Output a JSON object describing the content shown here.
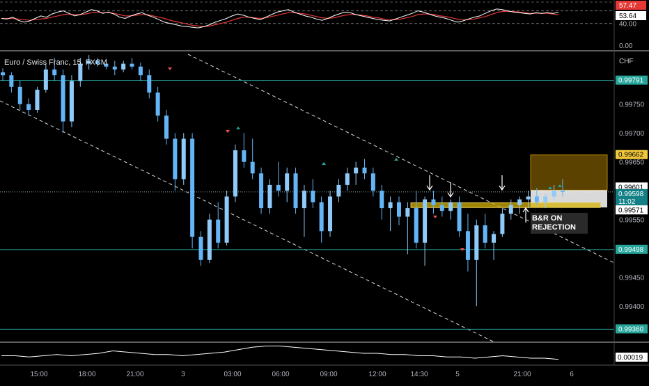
{
  "header": {
    "symbol_title": "Euro / Swiss Franc, 15, FXCM",
    "currency": "CHF"
  },
  "annotation": {
    "line1": "B&R ON",
    "line2": "REJECTION"
  },
  "colors": {
    "up": "#90caf9",
    "down": "#64b5f6",
    "level_line": "#26a69a",
    "zone_orange": "#6b4e00",
    "zone_yellow": "#d4b106",
    "rsi_fast": "#ffffff",
    "rsi_slow": "#e53935",
    "background": "#000000"
  },
  "chart_data": [
    {
      "type": "line",
      "name": "rsi-panel",
      "ylim": [
        0,
        75
      ],
      "tick_labels": [
        "57.47",
        "53.64",
        "40.00",
        "0.00"
      ],
      "last_values": {
        "fast": 57.47,
        "slow": 53.64
      },
      "levels": [
        40,
        60
      ],
      "fast": [
        48,
        47,
        50,
        45,
        42,
        44,
        48,
        52,
        50,
        55,
        58,
        60,
        56,
        52,
        54,
        58,
        62,
        60,
        56,
        58,
        55,
        50,
        48,
        52,
        55,
        57,
        53,
        50,
        46,
        42,
        40,
        38,
        36,
        35,
        34,
        33,
        35,
        38,
        42,
        45,
        48,
        52,
        55,
        53,
        50,
        48,
        46,
        50,
        54,
        58,
        60,
        62,
        58,
        55,
        52,
        50,
        47,
        45,
        48,
        52,
        55,
        58,
        57,
        54,
        52,
        50,
        48,
        46,
        45,
        44,
        47,
        50,
        53,
        56,
        60,
        58,
        55,
        52,
        50,
        48,
        45,
        42,
        44,
        47,
        50,
        52,
        56,
        60,
        63,
        62,
        60,
        58,
        57,
        56,
        55,
        57,
        56,
        57,
        56,
        57.47
      ],
      "slow": [
        48,
        48,
        48,
        47,
        46,
        45,
        46,
        47,
        48,
        50,
        52,
        54,
        55,
        54,
        54,
        55,
        57,
        58,
        57,
        57,
        56,
        54,
        52,
        52,
        53,
        54,
        54,
        52,
        50,
        48,
        45,
        43,
        41,
        39,
        37,
        36,
        35,
        36,
        38,
        40,
        42,
        45,
        48,
        50,
        50,
        49,
        48,
        49,
        51,
        53,
        55,
        57,
        57,
        56,
        55,
        53,
        51,
        49,
        48,
        49,
        51,
        53,
        54,
        54,
        53,
        52,
        50,
        49,
        47,
        46,
        46,
        47,
        49,
        51,
        54,
        55,
        55,
        54,
        52,
        51,
        49,
        47,
        46,
        46,
        47,
        49,
        51,
        54,
        57,
        59,
        59,
        59,
        58,
        57,
        56,
        56,
        56,
        56,
        55,
        53.64
      ]
    },
    {
      "type": "candlestick",
      "name": "price-panel",
      "ylim": [
        0.9934,
        0.9984
      ],
      "x_ticks": [
        "15:00",
        "18:00",
        "21:00",
        "3",
        "03:00",
        "06:00",
        "09:00",
        "12:00",
        "14:30",
        "5",
        "21:00",
        "6"
      ],
      "y_ticks": [
        "0.99750",
        "0.99700",
        "0.99650",
        "0.99550",
        "0.99450",
        "0.99400"
      ],
      "price_labels": [
        {
          "text": "0.99791",
          "value": 0.99791
        },
        {
          "text": "0.99662",
          "value": 0.99662
        },
        {
          "text": "0.99601",
          "value": 0.99601
        },
        {
          "text": "0.99598",
          "value": 0.99598
        },
        {
          "text": "11:02",
          "value": 0.99588
        },
        {
          "text": "0.99571",
          "value": 0.99571
        },
        {
          "text": "0.99498",
          "value": 0.99498
        },
        {
          "text": "0.99360",
          "value": 0.9936
        }
      ],
      "horizontal_levels": [
        0.99791,
        0.99498,
        0.9936
      ],
      "last_price": 0.99598,
      "zones": [
        {
          "kind": "orange",
          "from": 0.99601,
          "to": 0.99662
        },
        {
          "kind": "white",
          "from": 0.99571,
          "to": 0.99601
        },
        {
          "kind": "yellow",
          "from": 0.99571,
          "to": 0.99579
        }
      ],
      "candles": [
        [
          0.99805,
          0.99812,
          0.9979,
          0.998
        ],
        [
          0.998,
          0.99805,
          0.9977,
          0.9978
        ],
        [
          0.9978,
          0.9979,
          0.9974,
          0.9975
        ],
        [
          0.9975,
          0.9976,
          0.9973,
          0.9974
        ],
        [
          0.9974,
          0.9978,
          0.99735,
          0.99775
        ],
        [
          0.99775,
          0.9982,
          0.9977,
          0.9981
        ],
        [
          0.9981,
          0.9983,
          0.9979,
          0.998
        ],
        [
          0.998,
          0.9981,
          0.997,
          0.9972
        ],
        [
          0.9972,
          0.998,
          0.9971,
          0.9979
        ],
        [
          0.9979,
          0.9983,
          0.9978,
          0.9982
        ],
        [
          0.9982,
          0.99835,
          0.9981,
          0.99825
        ],
        [
          0.99825,
          0.9983,
          0.99815,
          0.9982
        ],
        [
          0.9982,
          0.99828,
          0.9981,
          0.99815
        ],
        [
          0.99815,
          0.99825,
          0.998,
          0.9981
        ],
        [
          0.9981,
          0.99825,
          0.99805,
          0.9982
        ],
        [
          0.9982,
          0.9983,
          0.9981,
          0.99815
        ],
        [
          0.99815,
          0.99822,
          0.9979,
          0.998
        ],
        [
          0.998,
          0.9981,
          0.9976,
          0.9977
        ],
        [
          0.9977,
          0.9978,
          0.9972,
          0.9973
        ],
        [
          0.9973,
          0.9974,
          0.9968,
          0.9969
        ],
        [
          0.9969,
          0.997,
          0.996,
          0.9962
        ],
        [
          0.9962,
          0.997,
          0.9961,
          0.9969
        ],
        [
          0.9969,
          0.997,
          0.995,
          0.9952
        ],
        [
          0.9952,
          0.9953,
          0.9947,
          0.9948
        ],
        [
          0.9948,
          0.9956,
          0.99475,
          0.9955
        ],
        [
          0.9955,
          0.9958,
          0.995,
          0.9951
        ],
        [
          0.9951,
          0.996,
          0.99505,
          0.9959
        ],
        [
          0.9959,
          0.9968,
          0.9958,
          0.9967
        ],
        [
          0.9967,
          0.997,
          0.9964,
          0.9965
        ],
        [
          0.9965,
          0.9969,
          0.9962,
          0.9963
        ],
        [
          0.9963,
          0.9964,
          0.9956,
          0.9957
        ],
        [
          0.9957,
          0.9962,
          0.9956,
          0.9961
        ],
        [
          0.9961,
          0.9965,
          0.9959,
          0.996
        ],
        [
          0.996,
          0.9964,
          0.9958,
          0.9963
        ],
        [
          0.9963,
          0.9964,
          0.9956,
          0.9957
        ],
        [
          0.9957,
          0.9961,
          0.9952,
          0.996
        ],
        [
          0.996,
          0.9962,
          0.9957,
          0.9958
        ],
        [
          0.9958,
          0.9959,
          0.9951,
          0.9953
        ],
        [
          0.9953,
          0.996,
          0.9952,
          0.9959
        ],
        [
          0.9959,
          0.9962,
          0.9958,
          0.9961
        ],
        [
          0.9961,
          0.9964,
          0.996,
          0.9963
        ],
        [
          0.9963,
          0.9965,
          0.9961,
          0.9964
        ],
        [
          0.9964,
          0.99655,
          0.9962,
          0.9963
        ],
        [
          0.9963,
          0.9964,
          0.9959,
          0.996
        ],
        [
          0.996,
          0.9961,
          0.9955,
          0.9957
        ],
        [
          0.9957,
          0.9959,
          0.9953,
          0.9958
        ],
        [
          0.9958,
          0.9959,
          0.9954,
          0.99555
        ],
        [
          0.99555,
          0.9958,
          0.9949,
          0.9957
        ],
        [
          0.9957,
          0.996,
          0.995,
          0.9951
        ],
        [
          0.9951,
          0.9959,
          0.9947,
          0.99585
        ],
        [
          0.99585,
          0.996,
          0.9956,
          0.99575
        ],
        [
          0.99575,
          0.9959,
          0.99555,
          0.99565
        ],
        [
          0.99565,
          0.99585,
          0.9955,
          0.9958
        ],
        [
          0.9958,
          0.9959,
          0.9952,
          0.9953
        ],
        [
          0.9953,
          0.9956,
          0.9946,
          0.9948
        ],
        [
          0.9948,
          0.9955,
          0.994,
          0.9954
        ],
        [
          0.9954,
          0.9956,
          0.995,
          0.9951
        ],
        [
          0.9951,
          0.9953,
          0.9948,
          0.99525
        ],
        [
          0.99525,
          0.9957,
          0.9952,
          0.9956
        ],
        [
          0.9956,
          0.99585,
          0.9955,
          0.99575
        ],
        [
          0.99575,
          0.9959,
          0.9956,
          0.99585
        ],
        [
          0.99585,
          0.996,
          0.9957,
          0.9959
        ],
        [
          0.9959,
          0.99605,
          0.99575,
          0.9958
        ],
        [
          0.9958,
          0.99595,
          0.9957,
          0.9959
        ],
        [
          0.9959,
          0.9961,
          0.99585,
          0.996
        ],
        [
          0.996,
          0.9962,
          0.9959,
          0.99598
        ]
      ]
    },
    {
      "type": "area",
      "name": "volatility-panel",
      "last_value_label": "0.00019",
      "values": [
        0.00022,
        0.00022,
        0.00021,
        0.00022,
        0.00023,
        0.00022,
        0.00023,
        0.00024,
        0.00026,
        0.00025,
        0.00024,
        0.00023,
        0.00023,
        0.00022,
        0.00023,
        0.00024,
        0.00025,
        0.00027,
        0.00029,
        0.0003,
        0.0003,
        0.00029,
        0.00028,
        0.00027,
        0.00026,
        0.00025,
        0.00024,
        0.00024,
        0.00023,
        0.00023,
        0.00022,
        0.00022,
        0.00021,
        0.00021,
        0.0002,
        0.00021,
        0.00022,
        0.00021,
        0.0002,
        0.0002,
        0.00019
      ]
    }
  ]
}
